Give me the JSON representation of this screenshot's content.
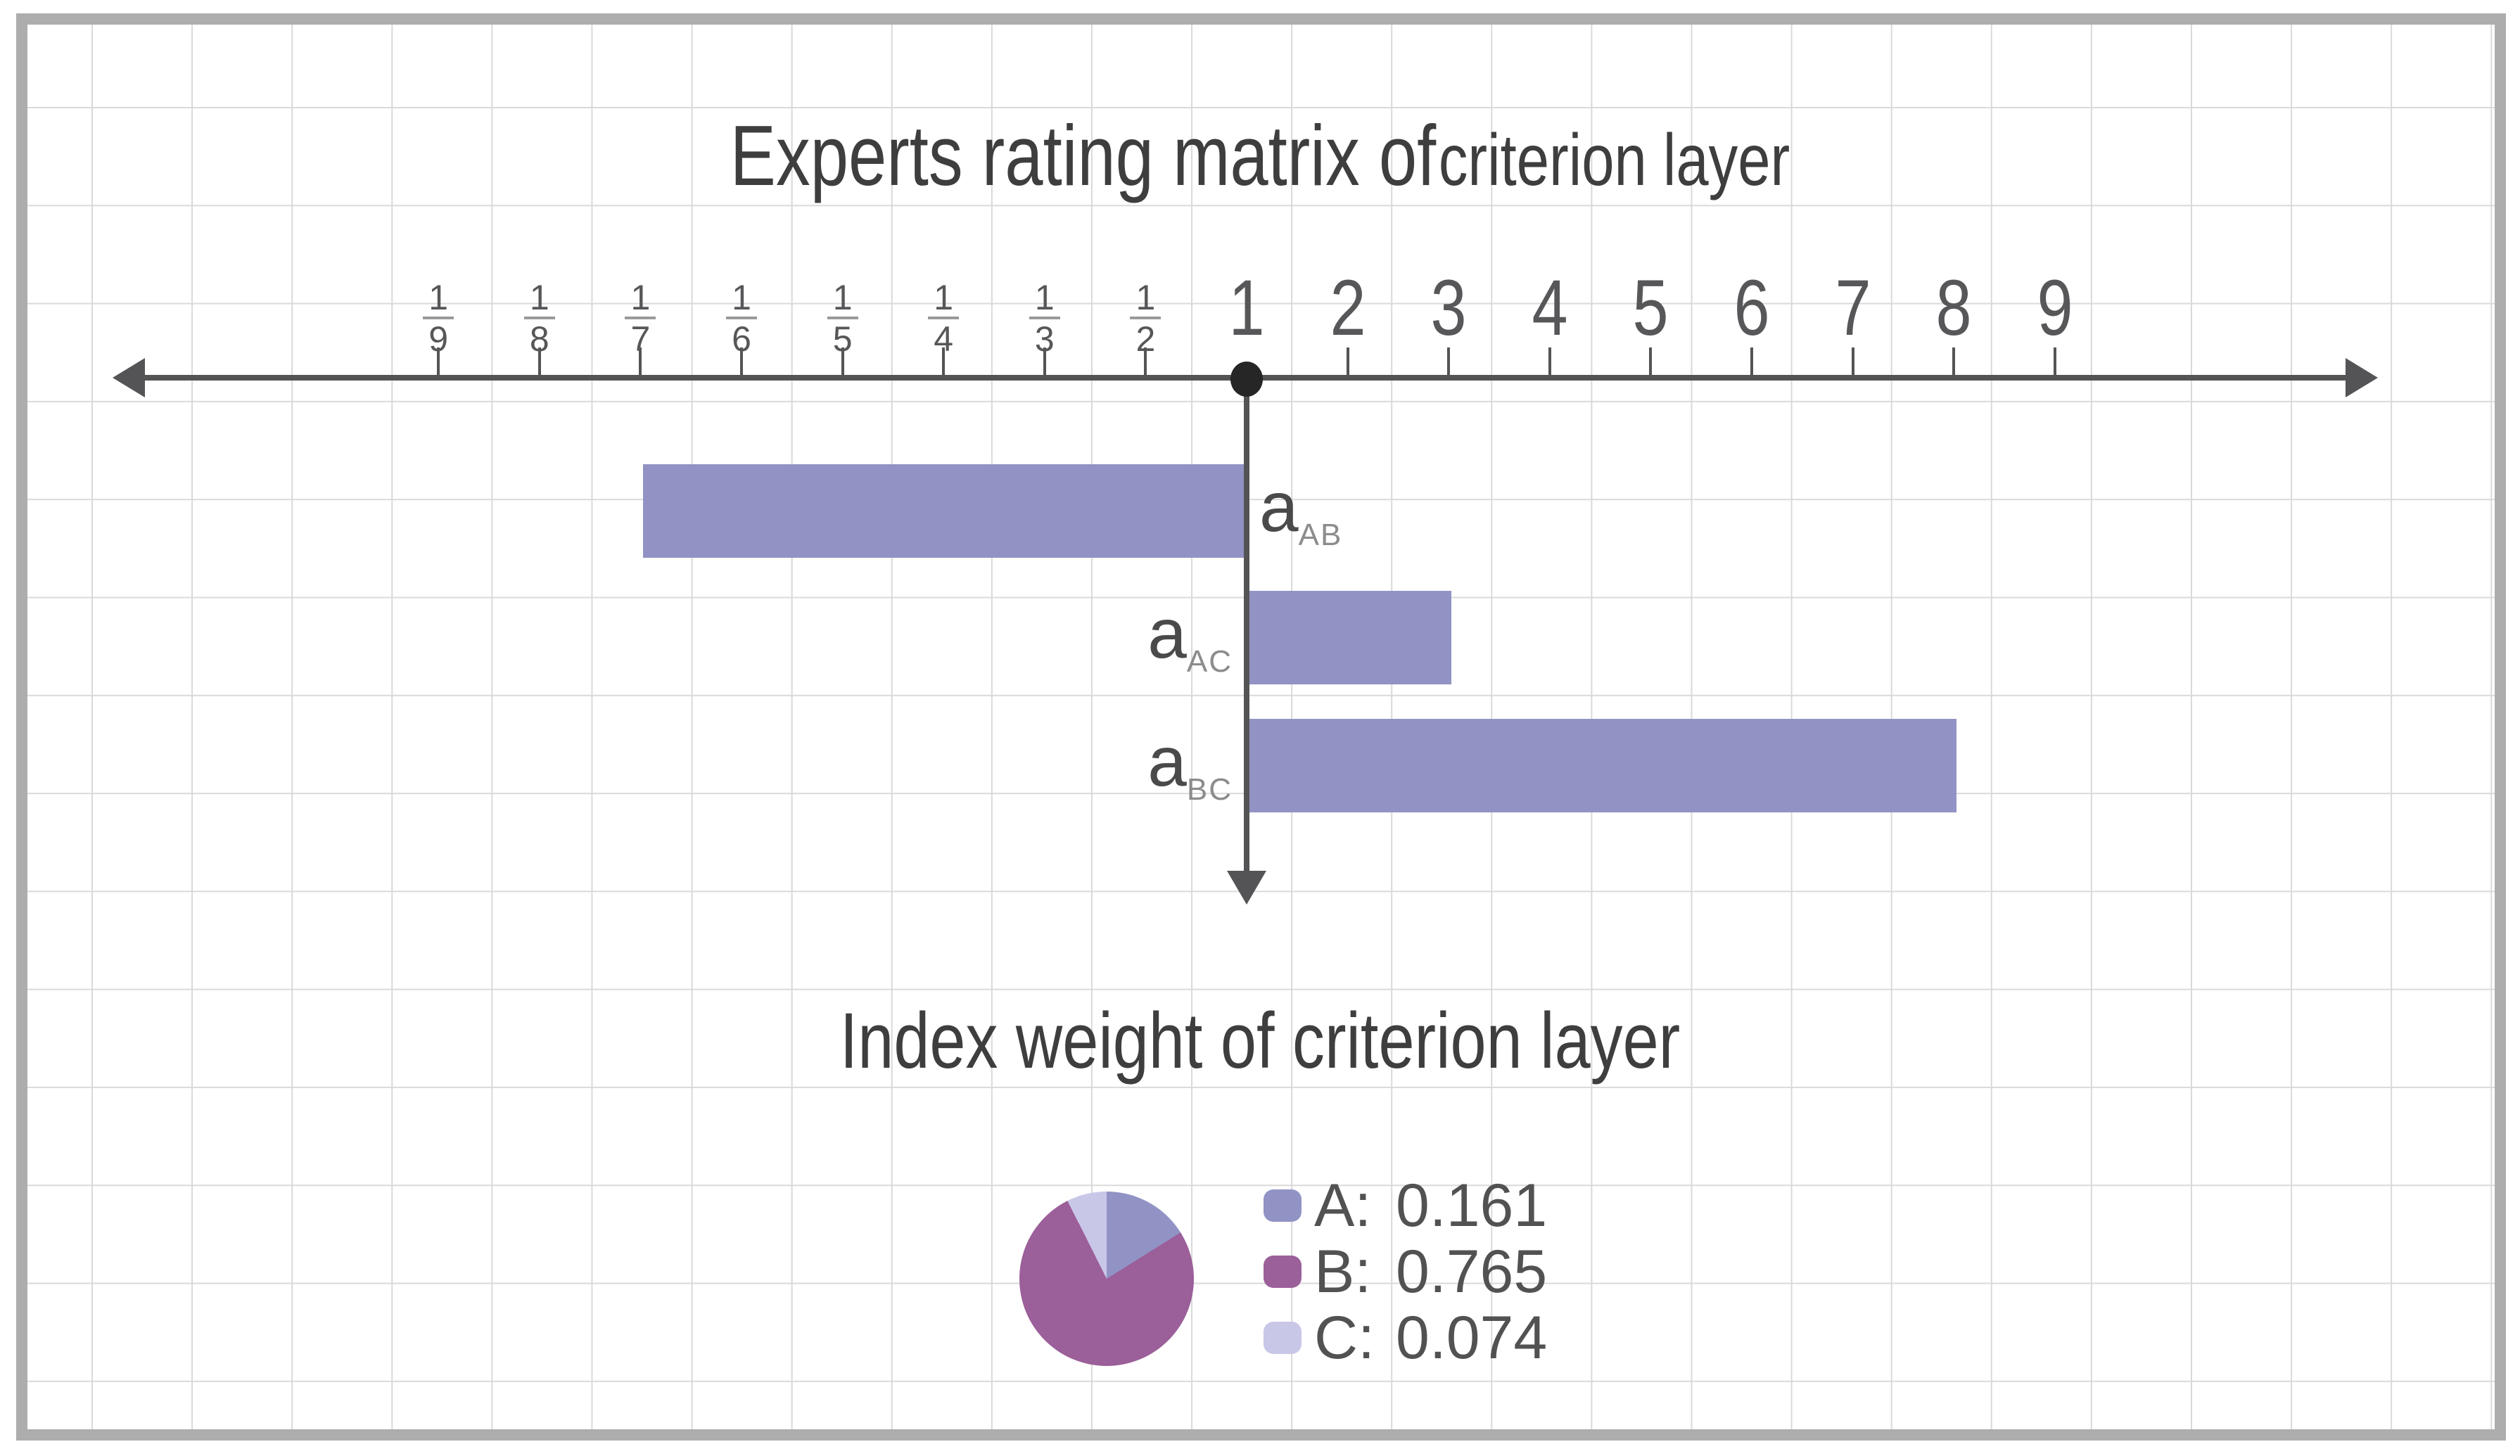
{
  "page": {
    "background": "#ffffff",
    "frame_color": "#adadad",
    "grid_color": "#d9d9d9",
    "axis_color": "#545456",
    "text_color": "#3e3e3e"
  },
  "title": {
    "text_main": "Experts rating matrix of",
    "text_sub": "criterion layer"
  },
  "subtitle": "Index weight of criterion layer",
  "chart_data": [
    {
      "type": "bar",
      "title": "Experts rating matrix of criterion layer",
      "orientation": "horizontal",
      "grid": true,
      "axis": {
        "description": "AHP comparison scale, reciprocal fractions left of origin 1, integers right",
        "tick_labels": [
          "1/9",
          "1/8",
          "1/7",
          "1/6",
          "1/5",
          "1/4",
          "1/3",
          "1/2",
          "1",
          "2",
          "3",
          "4",
          "5",
          "6",
          "7",
          "8",
          "9"
        ],
        "origin_label": "1",
        "xlim_left": "1/9",
        "xlim_right": "9"
      },
      "bar_color": "#9293c4",
      "bars": [
        {
          "label": "a",
          "subscript": "AB",
          "value": "1/7",
          "numeric": 0.142857,
          "direction": "left"
        },
        {
          "label": "a",
          "subscript": "AC",
          "value": "3",
          "numeric": 3,
          "direction": "right"
        },
        {
          "label": "a",
          "subscript": "BC",
          "value": "8",
          "numeric": 8,
          "direction": "right"
        }
      ]
    },
    {
      "type": "pie",
      "title": "Index weight of criterion layer",
      "start_angle_deg": 0,
      "direction": "clockwise",
      "slices": [
        {
          "label": "A",
          "value": 0.161,
          "color": "#9193c5"
        },
        {
          "label": "B",
          "value": 0.765,
          "color": "#9b5f9a"
        },
        {
          "label": "C",
          "value": 0.074,
          "color": "#c9c7e7"
        }
      ],
      "legend_position": "right",
      "legend": [
        {
          "label": "A:",
          "value": "0.161"
        },
        {
          "label": "B:",
          "value": "0.765"
        },
        {
          "label": "C:",
          "value": "0.074"
        }
      ]
    }
  ]
}
